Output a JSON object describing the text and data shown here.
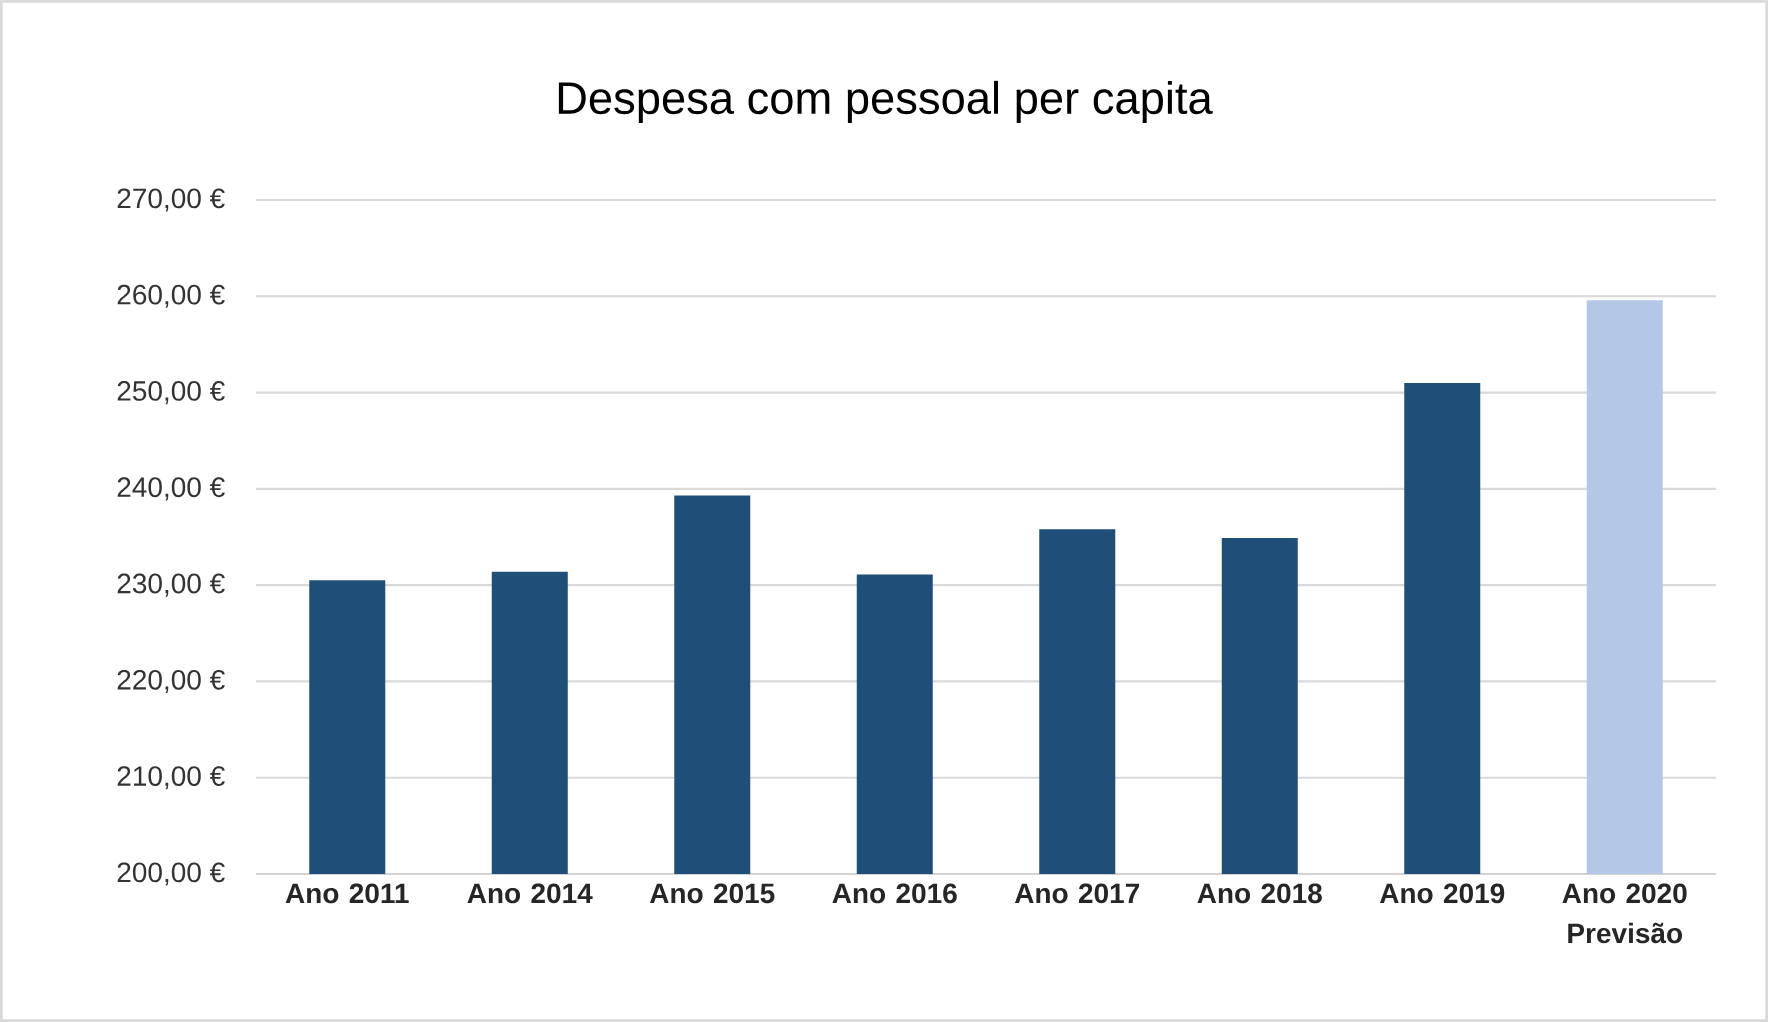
{
  "chart_data": {
    "type": "bar",
    "title": "Despesa com pessoal per capita",
    "categories": [
      "Ano 2011",
      "Ano 2014",
      "Ano 2015",
      "Ano 2016",
      "Ano 2017",
      "Ano 2018",
      "Ano 2019",
      "Ano 2020 Previsão"
    ],
    "values": [
      230.5,
      231.4,
      239.3,
      231.1,
      235.8,
      234.9,
      251.0,
      259.6
    ],
    "colors": [
      "#1f4e79",
      "#1f4e79",
      "#1f4e79",
      "#1f4e79",
      "#1f4e79",
      "#1f4e79",
      "#1f4e79",
      "#b4c7e7"
    ],
    "ylim": [
      200,
      270
    ],
    "yticks": [
      {
        "value": 200,
        "label": "200,00 €"
      },
      {
        "value": 210,
        "label": "210,00 €"
      },
      {
        "value": 220,
        "label": "220,00 €"
      },
      {
        "value": 230,
        "label": "230,00 €"
      },
      {
        "value": 240,
        "label": "240,00 €"
      },
      {
        "value": 250,
        "label": "250,00 €"
      },
      {
        "value": 260,
        "label": "260,00 €"
      },
      {
        "value": 270,
        "label": "270,00 €"
      }
    ],
    "grid": "y"
  }
}
